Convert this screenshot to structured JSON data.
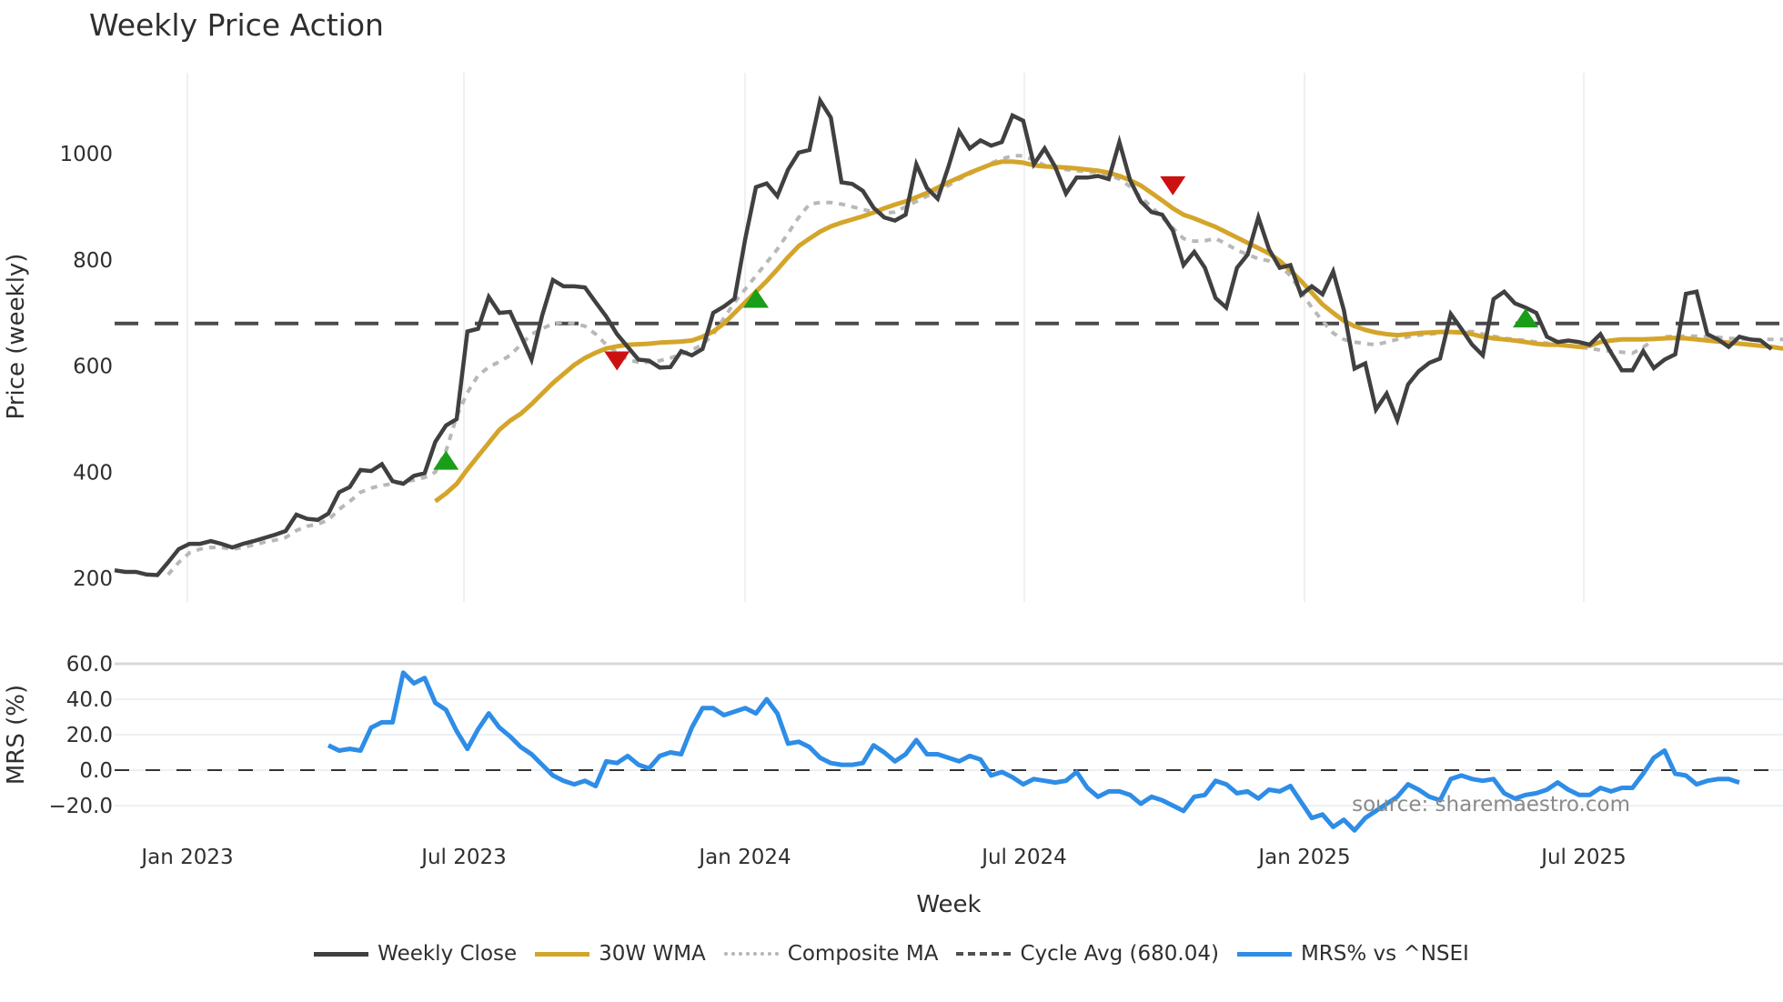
{
  "title": "Weekly Price Action",
  "price_panel": {
    "ylabel": "Price (weekly)",
    "yticks": [
      "200",
      "400",
      "600",
      "800",
      "1000"
    ],
    "cycle_avg": 680.04
  },
  "mrs_panel": {
    "ylabel": "MRS (%)",
    "yticks": [
      "60.0",
      "40.0",
      "20.0",
      "0.0",
      "−20.0"
    ]
  },
  "xaxis": {
    "title": "Week",
    "ticks": [
      "Jan 2023",
      "Jul 2023",
      "Jan 2024",
      "Jul 2024",
      "Jan 2025",
      "Jul 2025"
    ]
  },
  "source": "source: sharemaestro.com",
  "legend": [
    {
      "label": "Weekly Close",
      "color": "#404040",
      "style": "solid"
    },
    {
      "label": "30W WMA",
      "color": "#d4a52a",
      "style": "solid"
    },
    {
      "label": "Composite MA",
      "color": "#b5b5b5",
      "style": "dotted"
    },
    {
      "label": "Cycle Avg (680.04)",
      "color": "#505050",
      "style": "dashed"
    },
    {
      "label": "MRS% vs ^NSEI",
      "color": "#2e8de6",
      "style": "solid"
    }
  ],
  "chart_data": [
    {
      "type": "line",
      "title": "Weekly Price Action",
      "xlabel": "Week",
      "ylabel": "Price (weekly)",
      "ylim": [
        180,
        1130
      ],
      "x_ticks": [
        "Jan 2023",
        "Jul 2023",
        "Jan 2024",
        "Jul 2024",
        "Jan 2025",
        "Jul 2025"
      ],
      "x_start": "2022-11-14",
      "x_step": "1 week",
      "series": [
        {
          "name": "Weekly Close",
          "values": [
            215,
            212,
            212,
            207,
            206,
            230,
            255,
            265,
            265,
            270,
            265,
            258,
            265,
            270,
            276,
            282,
            289,
            320,
            312,
            310,
            322,
            362,
            372,
            404,
            402,
            415,
            383,
            378,
            393,
            398,
            457,
            488,
            500,
            665,
            670,
            730,
            700,
            702,
            658,
            612,
            695,
            762,
            750,
            750,
            748,
            720,
            693,
            660,
            636,
            612,
            610,
            597,
            598,
            628,
            620,
            632,
            700,
            712,
            727,
            840,
            937,
            944,
            920,
            970,
            1002,
            1007,
            1100,
            1068,
            946,
            943,
            930,
            898,
            880,
            874,
            885,
            980,
            935,
            915,
            975,
            1042,
            1010,
            1025,
            1015,
            1022,
            1072,
            1062,
            980,
            1010,
            975,
            925,
            955,
            955,
            958,
            952,
            1022,
            950,
            910,
            890,
            885,
            855,
            790,
            815,
            785,
            728,
            710,
            785,
            810,
            880,
            820,
            785,
            790,
            734,
            750,
            735,
            778,
            705,
            595,
            605,
            518,
            548,
            498,
            565,
            590,
            606,
            614,
            698,
            670,
            640,
            620,
            726,
            740,
            718,
            710,
            700,
            655,
            645,
            648,
            645,
            640,
            660,
            625,
            592,
            592,
            628,
            596,
            612,
            622,
            736,
            740,
            660,
            650,
            636,
            655,
            650,
            648,
            632
          ]
        },
        {
          "name": "30W WMA",
          "values": [
            null,
            null,
            null,
            null,
            null,
            null,
            null,
            null,
            null,
            null,
            null,
            null,
            null,
            null,
            null,
            null,
            null,
            null,
            null,
            null,
            null,
            null,
            null,
            null,
            null,
            null,
            null,
            null,
            null,
            null,
            345,
            360,
            378,
            405,
            430,
            455,
            480,
            497,
            510,
            528,
            548,
            568,
            585,
            602,
            615,
            625,
            633,
            637,
            640,
            641,
            642,
            644,
            645,
            646,
            648,
            655,
            665,
            680,
            700,
            720,
            740,
            760,
            782,
            805,
            826,
            840,
            853,
            863,
            870,
            876,
            882,
            889,
            897,
            904,
            910,
            918,
            926,
            936,
            946,
            955,
            964,
            972,
            980,
            985,
            985,
            983,
            978,
            976,
            975,
            974,
            972,
            970,
            968,
            964,
            958,
            950,
            940,
            926,
            912,
            897,
            885,
            878,
            870,
            862,
            852,
            842,
            832,
            822,
            812,
            798,
            780,
            760,
            738,
            716,
            700,
            685,
            675,
            668,
            663,
            660,
            658,
            660,
            662,
            663,
            664,
            664,
            663,
            660,
            655,
            652,
            650,
            648,
            645,
            642,
            640,
            640,
            638,
            636,
            638,
            645,
            648,
            650,
            650,
            650,
            651,
            652,
            653,
            652,
            650,
            648,
            646,
            644,
            642,
            640,
            638,
            636,
            633,
            630
          ]
        },
        {
          "name": "Composite MA",
          "values": [
            null,
            null,
            null,
            null,
            null,
            207,
            230,
            248,
            255,
            258,
            258,
            255,
            258,
            263,
            268,
            272,
            277,
            290,
            298,
            302,
            310,
            330,
            345,
            362,
            370,
            375,
            378,
            382,
            385,
            390,
            400,
            440,
            505,
            550,
            582,
            598,
            608,
            620,
            640,
            660,
            670,
            680,
            682,
            680,
            675,
            660,
            640,
            625,
            612,
            607,
            607,
            610,
            615,
            622,
            630,
            640,
            660,
            690,
            720,
            745,
            770,
            795,
            820,
            850,
            880,
            905,
            908,
            908,
            905,
            900,
            895,
            890,
            888,
            890,
            900,
            910,
            920,
            930,
            940,
            952,
            962,
            972,
            982,
            990,
            996,
            996,
            988,
            978,
            972,
            970,
            968,
            966,
            964,
            960,
            952,
            938,
            918,
            900,
            880,
            860,
            840,
            835,
            836,
            840,
            830,
            818,
            810,
            802,
            798,
            790,
            770,
            740,
            710,
            685,
            662,
            650,
            645,
            642,
            640,
            645,
            650,
            655,
            658,
            660,
            662,
            664,
            665,
            665,
            660,
            656,
            652,
            650,
            648,
            645,
            643,
            640,
            638,
            635,
            633,
            630,
            628,
            626,
            624,
            635,
            650,
            655,
            656,
            656,
            656,
            655,
            654,
            652,
            651,
            650,
            650,
            650,
            650,
            648
          ]
        },
        {
          "name": "Cycle Avg (680.04)",
          "values": [
            680.04
          ]
        }
      ],
      "markers": [
        {
          "type": "buy",
          "shape": "triangle-up",
          "color": "#1a9e1a",
          "x_index": 31,
          "value": 420
        },
        {
          "type": "sell",
          "shape": "triangle-down",
          "color": "#cc1111",
          "x_index": 47,
          "value": 612
        },
        {
          "type": "buy",
          "shape": "triangle-up",
          "color": "#1a9e1a",
          "x_index": 60,
          "value": 725
        },
        {
          "type": "sell",
          "shape": "triangle-down",
          "color": "#cc1111",
          "x_index": 99,
          "value": 942
        },
        {
          "type": "buy",
          "shape": "triangle-up",
          "color": "#1a9e1a",
          "x_index": 132,
          "value": 688
        }
      ]
    },
    {
      "type": "line",
      "xlabel": "Week",
      "ylabel": "MRS (%)",
      "ylim": [
        -35,
        62
      ],
      "reference_line": 0,
      "series": [
        {
          "name": "MRS% vs ^NSEI",
          "start_index": 20,
          "values": [
            14,
            11,
            12,
            11,
            24,
            27,
            27,
            55,
            49,
            52,
            38,
            34,
            22,
            12,
            23,
            32,
            24,
            19,
            13,
            9,
            3,
            -3,
            -6,
            -8,
            -6,
            -9,
            5,
            4,
            8,
            3,
            1,
            8,
            10,
            9,
            24,
            35,
            35,
            31,
            33,
            35,
            32,
            40,
            32,
            15,
            16,
            13,
            7,
            4,
            3,
            3,
            4,
            14,
            10,
            5,
            9,
            17,
            9,
            9,
            7,
            5,
            8,
            6,
            -3,
            -1,
            -4,
            -8,
            -5,
            -6,
            -7,
            -6,
            -1,
            -10,
            -15,
            -12,
            -12,
            -14,
            -19,
            -15,
            -17,
            -20,
            -23,
            -15,
            -14,
            -6,
            -8,
            -13,
            -12,
            -16,
            -11,
            -12,
            -9,
            -18,
            -27,
            -25,
            -32,
            -28,
            -34,
            -27,
            -23,
            -19,
            -15,
            -8,
            -11,
            -15,
            -17,
            -5,
            -3,
            -5,
            -6,
            -5,
            -13,
            -16,
            -14,
            -13,
            -11,
            -7,
            -11,
            -14,
            -14,
            -10,
            -12,
            -10,
            -10,
            -2,
            7,
            11,
            -2,
            -3,
            -8,
            -6,
            -5,
            -5,
            -7
          ]
        }
      ]
    }
  ]
}
